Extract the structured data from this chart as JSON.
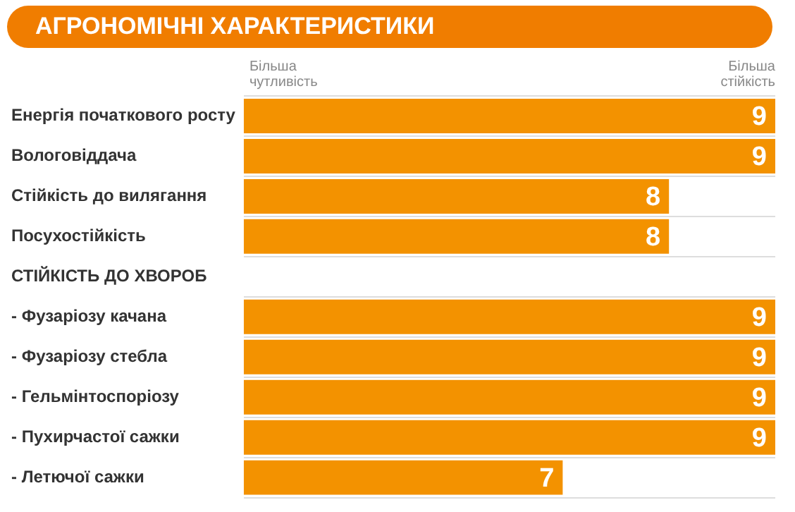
{
  "chart_data": {
    "type": "bar",
    "orientation": "horizontal",
    "title": "АГРОНОМІЧНІ ХАРАКТЕРИСТИКИ",
    "categories": [
      "Енергія початкового росту",
      "Вологовіддача",
      "Стійкість до вилягання",
      "Посухостійкість",
      "СТІЙКІСТЬ ДО ХВОРОБ",
      "- Фузаріозу качана",
      "- Фузаріозу стебла",
      "- Гельмінтоспоріозу",
      "- Пухирчастої сажки",
      "- Летючої сажки"
    ],
    "values": [
      9,
      9,
      8,
      8,
      null,
      9,
      9,
      9,
      9,
      7
    ],
    "color": "#f39200",
    "xlim": [
      4,
      9
    ],
    "annotations": [
      "Більша чутливість",
      "Більша стійкість"
    ],
    "data_labels": true,
    "grid": "y",
    "legend": false
  }
}
